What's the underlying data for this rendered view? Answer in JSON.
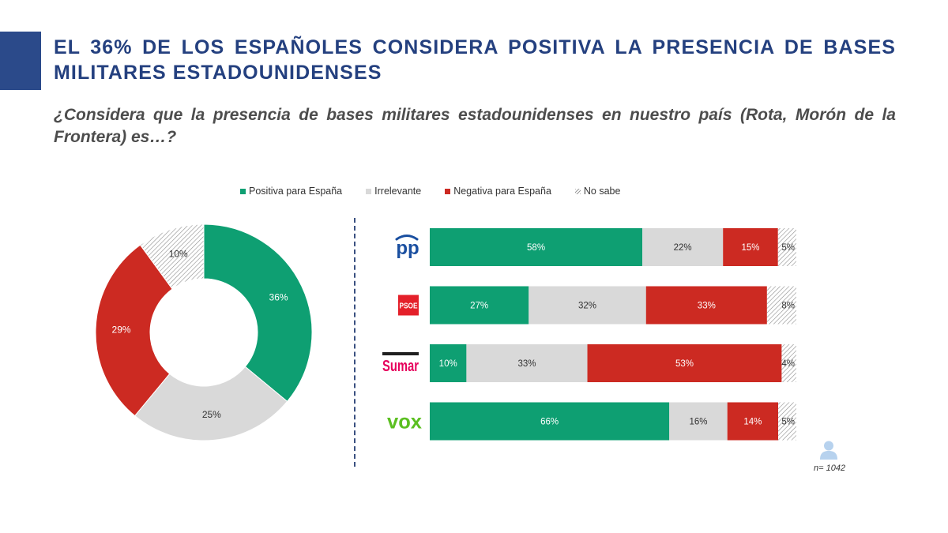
{
  "title": "EL 36% DE LOS ESPAÑOLES CONSIDERA POSITIVA LA PRESENCIA DE BASES MILITARES ESTADOUNIDENSES",
  "subtitle": "¿Considera que la presencia de bases militares estadounidenses en nuestro país (Rota, Morón de la Frontera) es…?",
  "legend": [
    {
      "label": "Positiva para España",
      "color": "#0e9f72"
    },
    {
      "label": "Irrelevante",
      "color": "#d9d9d9"
    },
    {
      "label": "Negativa para España",
      "color": "#cc2a22"
    },
    {
      "label": "No sabe",
      "color": "hatch"
    }
  ],
  "chart_data": [
    {
      "type": "pie",
      "subtype": "donut",
      "categories": [
        "Positiva para España",
        "Irrelevante",
        "Negativa para España",
        "No sabe"
      ],
      "values": [
        36,
        25,
        29,
        10
      ],
      "labels": [
        "36%",
        "25%",
        "29%",
        "10%"
      ],
      "colors": [
        "#0e9f72",
        "#d9d9d9",
        "#cc2a22",
        "hatch"
      ]
    },
    {
      "type": "bar",
      "orientation": "horizontal",
      "stacked": true,
      "categories": [
        "PP",
        "PSOE",
        "Sumar",
        "VOX"
      ],
      "series": [
        {
          "name": "Positiva para España",
          "values": [
            58,
            27,
            10,
            66
          ],
          "color": "#0e9f72"
        },
        {
          "name": "Irrelevante",
          "values": [
            22,
            32,
            33,
            16
          ],
          "color": "#d9d9d9"
        },
        {
          "name": "Negativa para España",
          "values": [
            15,
            33,
            53,
            14
          ],
          "color": "#cc2a22"
        },
        {
          "name": "No sabe",
          "values": [
            5,
            8,
            4,
            5
          ],
          "color": "hatch"
        }
      ]
    }
  ],
  "party_logos": [
    {
      "text": "pp",
      "color": "#1a4fa0",
      "style": "pp"
    },
    {
      "text": "PSOE",
      "color": "#e4202a",
      "style": "psoe"
    },
    {
      "text": "Sumar",
      "color": "#e6005c",
      "style": "sumar"
    },
    {
      "text": "vox",
      "color": "#5bbf21",
      "style": "vox"
    }
  ],
  "sample_size": "n= 1042"
}
